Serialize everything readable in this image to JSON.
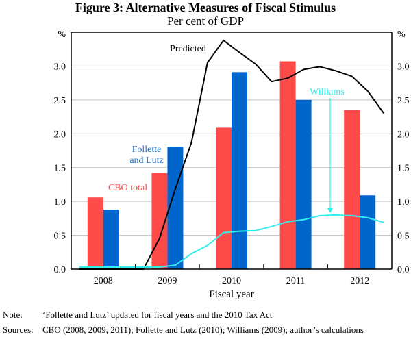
{
  "chart_data": {
    "type": "bar",
    "title": "Figure 3: Alternative Measures of Fiscal Stimulus",
    "subtitle": "Per cent of GDP",
    "xlabel": "Fiscal year",
    "ylabel_left": "%",
    "ylabel_right": "%",
    "ylim": [
      0,
      3.5
    ],
    "yticks": [
      "0.0",
      "0.5",
      "1.0",
      "1.5",
      "2.0",
      "2.5",
      "3.0"
    ],
    "ytick_values": [
      0,
      0.5,
      1.0,
      1.5,
      2.0,
      2.5,
      3.0
    ],
    "categories": [
      "2008",
      "2009",
      "2010",
      "2011",
      "2012"
    ],
    "grid": true,
    "series": [
      {
        "name": "CBO total",
        "kind": "bar",
        "color": "#ff4a4a",
        "values": [
          1.06,
          1.42,
          2.09,
          3.07,
          2.35
        ]
      },
      {
        "name": "Follette and Lutz",
        "kind": "bar",
        "color": "#0066cc",
        "values": [
          0.88,
          1.81,
          2.91,
          2.5,
          1.09
        ]
      },
      {
        "name": "Predicted",
        "kind": "line",
        "color": "#000000",
        "x": [
          2007.625,
          2008.625,
          2008.875,
          2009.125,
          2009.375,
          2009.625,
          2009.875,
          2010.125,
          2010.375,
          2010.625,
          2010.875,
          2011.125,
          2011.375,
          2011.625,
          2011.875,
          2012.125,
          2012.375
        ],
        "values": [
          0.0,
          0.0,
          0.45,
          1.19,
          1.87,
          3.05,
          3.38,
          3.2,
          3.03,
          2.77,
          2.82,
          2.95,
          2.99,
          2.93,
          2.85,
          2.63,
          2.3
        ]
      },
      {
        "name": "Williams",
        "kind": "line",
        "color": "#33eeee",
        "x": [
          2007.625,
          2008.875,
          2009.125,
          2009.375,
          2009.625,
          2009.875,
          2010.125,
          2010.375,
          2010.625,
          2010.875,
          2011.125,
          2011.375,
          2011.625,
          2011.875,
          2012.125,
          2012.375
        ],
        "values": [
          0.03,
          0.03,
          0.06,
          0.23,
          0.35,
          0.54,
          0.56,
          0.57,
          0.63,
          0.7,
          0.73,
          0.79,
          0.8,
          0.79,
          0.76,
          0.69
        ]
      }
    ],
    "annotations": [
      {
        "text": "Predicted",
        "series": "Predicted"
      },
      {
        "text": "Follette",
        "series": "Follette and Lutz"
      },
      {
        "text": "and Lutz",
        "series": "Follette and Lutz"
      },
      {
        "text": "CBO total",
        "series": "CBO total"
      },
      {
        "text": "Williams",
        "series": "Williams",
        "arrow": true
      }
    ]
  },
  "footer": {
    "note_label": "Note:",
    "note_text": "‘Follette and Lutz’ updated for fiscal years and the 2010 Tax Act",
    "sources_label": "Sources:",
    "sources_text": "CBO (2008, 2009, 2011); Follette and Lutz (2010); Williams (2009); author’s calculations"
  }
}
